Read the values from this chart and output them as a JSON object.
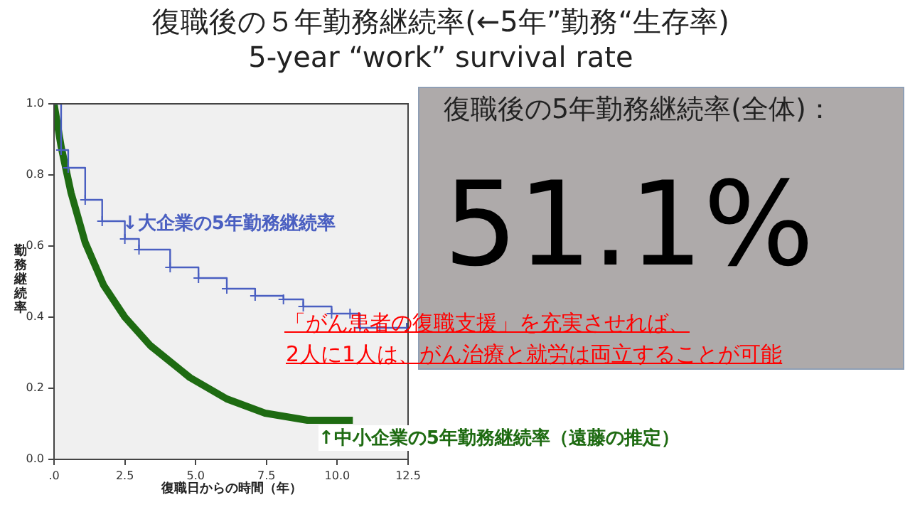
{
  "chart_data": {
    "type": "line",
    "title": "復職後の５年勤務継続率(←5年”勤務“生存率)",
    "subtitle": "5-year “work” survival rate",
    "xlabel": "復職日からの時間（年）",
    "ylabel": "勤務継続率",
    "xlim": [
      0,
      12.5
    ],
    "xticks": [
      {
        "value": 0,
        "label": ".0"
      },
      2.5,
      {
        "value": 5,
        "label": "5.0"
      },
      7.5,
      {
        "value": 10,
        "label": "10.0"
      },
      12.5
    ],
    "ylim": [
      0,
      1
    ],
    "yticks": [
      {
        "value": 0,
        "label": "0.0"
      },
      0.2,
      0.4,
      0.6,
      0.8,
      {
        "value": 1,
        "label": "1.0"
      }
    ],
    "grid": false,
    "legend": false,
    "series": [
      {
        "name": "↓大企業の5年勤務継続率",
        "type": "step",
        "color": "#4a5fc1",
        "marker": "cross",
        "x": [
          0,
          0.25,
          0.5,
          1.1,
          1.7,
          2.5,
          3.0,
          4.1,
          5.1,
          6.1,
          7.1,
          8.1,
          8.8,
          9.8,
          10.45,
          10.8,
          11.5,
          12.45
        ],
        "values": [
          1,
          0.87,
          0.82,
          0.73,
          0.67,
          0.62,
          0.59,
          0.54,
          0.51,
          0.48,
          0.46,
          0.45,
          0.43,
          0.41,
          0.41,
          0.37,
          0.37,
          0.37
        ]
      },
      {
        "name": "↑中小企業の5年勤務継続率（遠藤の推定）",
        "type": "line",
        "color": "#1e6b12",
        "marker": "none",
        "x": [
          0,
          0.25,
          0.6,
          1.1,
          1.75,
          2.5,
          3.4,
          4.8,
          6.1,
          7.45,
          8.95,
          10.55
        ],
        "values": [
          1,
          0.88,
          0.75,
          0.61,
          0.49,
          0.4,
          0.32,
          0.23,
          0.17,
          0.13,
          0.11,
          0.11
        ]
      }
    ],
    "annotations": [
      "復職後の5年勤務継続率(全体)：",
      "51.1%",
      "「がん患者の復職支援」を充実させれば、",
      "2人に1人は、がん治療と就労は両立することが可能"
    ]
  }
}
